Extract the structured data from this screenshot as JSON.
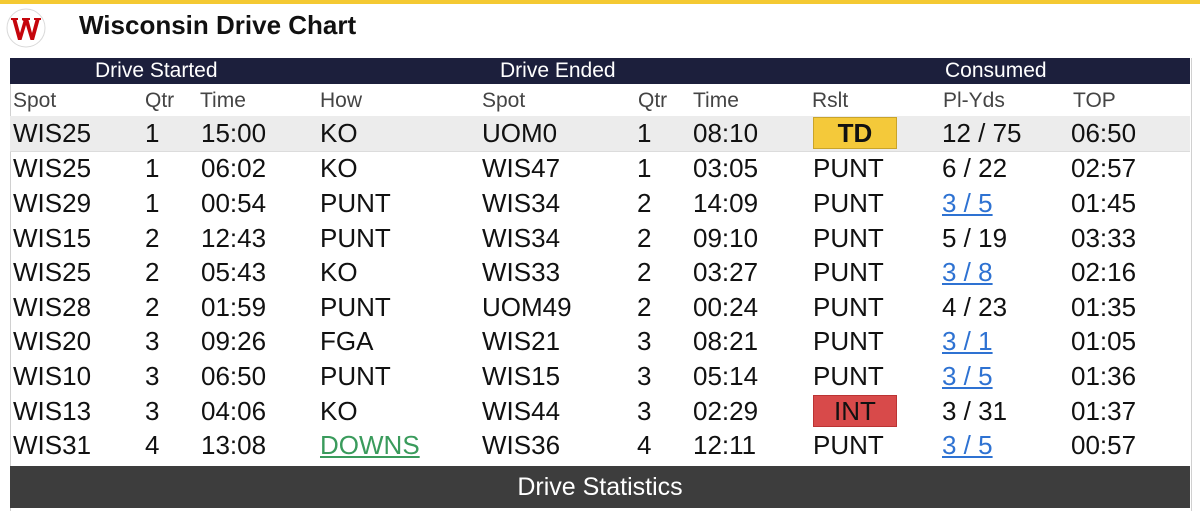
{
  "title": "Wisconsin Drive Chart",
  "colors": {
    "accent_bar": "#f4c932",
    "header_band": "#1c1f3c",
    "td_badge": "#f4c93a",
    "int_badge": "#d84a4a",
    "link": "#2e72d2",
    "downs_link": "#3a9b5c",
    "footer": "#3d3d3d"
  },
  "logo_icon": "wisconsin-w-logo",
  "groups": {
    "started": "Drive Started",
    "ended": "Drive Ended",
    "consumed": "Consumed"
  },
  "columns": [
    "Spot",
    "Qtr",
    "Time",
    "How",
    "Spot",
    "Qtr",
    "Time",
    "Rslt",
    "Pl-Yds",
    "TOP"
  ],
  "rows": [
    {
      "spot": "WIS25",
      "qtr": "1",
      "time": "15:00",
      "how": "KO",
      "end_spot": "UOM0",
      "end_qtr": "1",
      "end_time": "08:10",
      "result": "TD",
      "plyds": "12 / 75",
      "top": "06:50"
    },
    {
      "spot": "WIS25",
      "qtr": "1",
      "time": "06:02",
      "how": "KO",
      "end_spot": "WIS47",
      "end_qtr": "1",
      "end_time": "03:05",
      "result": "PUNT",
      "plyds": "6 / 22",
      "top": "02:57"
    },
    {
      "spot": "WIS29",
      "qtr": "1",
      "time": "00:54",
      "how": "PUNT",
      "end_spot": "WIS34",
      "end_qtr": "2",
      "end_time": "14:09",
      "result": "PUNT",
      "plyds": "3 / 5",
      "top": "01:45"
    },
    {
      "spot": "WIS15",
      "qtr": "2",
      "time": "12:43",
      "how": "PUNT",
      "end_spot": "WIS34",
      "end_qtr": "2",
      "end_time": "09:10",
      "result": "PUNT",
      "plyds": "5 / 19",
      "top": "03:33"
    },
    {
      "spot": "WIS25",
      "qtr": "2",
      "time": "05:43",
      "how": "KO",
      "end_spot": "WIS33",
      "end_qtr": "2",
      "end_time": "03:27",
      "result": "PUNT",
      "plyds": "3 / 8",
      "top": "02:16"
    },
    {
      "spot": "WIS28",
      "qtr": "2",
      "time": "01:59",
      "how": "PUNT",
      "end_spot": "UOM49",
      "end_qtr": "2",
      "end_time": "00:24",
      "result": "PUNT",
      "plyds": "4 / 23",
      "top": "01:35"
    },
    {
      "spot": "WIS20",
      "qtr": "3",
      "time": "09:26",
      "how": "FGA",
      "end_spot": "WIS21",
      "end_qtr": "3",
      "end_time": "08:21",
      "result": "PUNT",
      "plyds": "3 / 1",
      "top": "01:05"
    },
    {
      "spot": "WIS10",
      "qtr": "3",
      "time": "06:50",
      "how": "PUNT",
      "end_spot": "WIS15",
      "end_qtr": "3",
      "end_time": "05:14",
      "result": "PUNT",
      "plyds": "3 / 5",
      "top": "01:36"
    },
    {
      "spot": "WIS13",
      "qtr": "3",
      "time": "04:06",
      "how": "KO",
      "end_spot": "WIS44",
      "end_qtr": "3",
      "end_time": "02:29",
      "result": "INT",
      "plyds": "3 / 31",
      "top": "01:37"
    },
    {
      "spot": "WIS31",
      "qtr": "4",
      "time": "13:08",
      "how": "DOWNS",
      "end_spot": "WIS36",
      "end_qtr": "4",
      "end_time": "12:11",
      "result": "PUNT",
      "plyds": "3 / 5",
      "top": "00:57"
    }
  ],
  "footer": "Drive Statistics"
}
